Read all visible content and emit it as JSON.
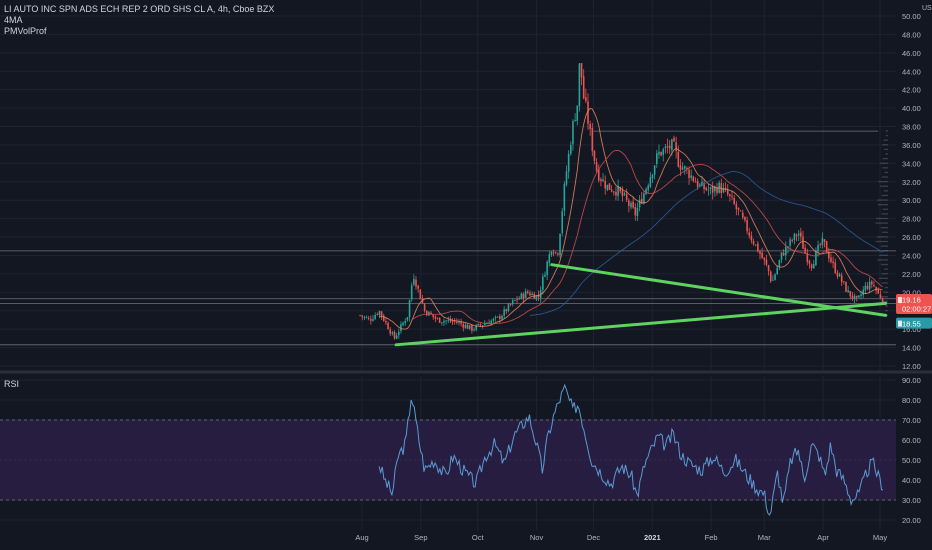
{
  "header": {
    "symbol_title": "LI AUTO INC SPN ADS ECH REP 2 ORD SHS CL A, 4h, Cboe BZX",
    "indicator_1": "4MA",
    "indicator_2": "PMVolProf"
  },
  "rsi_panel": {
    "label": "RSI"
  },
  "colors": {
    "background": "#131722",
    "grid": "#1f2330",
    "up_candle": "#26a69a",
    "down_candle": "#ef5350",
    "trendline": "#5fd35f",
    "price_label": "#ef5350",
    "secondary_label": "#2b9aa8",
    "rsi_line": "#5b9bd5",
    "rsi_band": "#2a1f45",
    "ma_fast": "#ef8a62",
    "ma_mid": "#d35050",
    "ma_slow": "#2e5fa0"
  },
  "chart_data": [
    {
      "type": "candlestick",
      "title": "LI AUTO INC SPN ADS ECH REP 2 ORD SHS CL A, 4h, Cboe BZX",
      "y_axis_unit": "USD",
      "ylim": [
        12,
        50
      ],
      "y_ticks": [
        "50.00",
        "48.00",
        "46.00",
        "44.00",
        "42.00",
        "40.00",
        "38.00",
        "36.00",
        "34.00",
        "32.00",
        "30.00",
        "28.00",
        "26.00",
        "24.00",
        "22.00",
        "20.00",
        "18.00",
        "16.00",
        "14.00",
        "12.00"
      ],
      "x_ticks": [
        "Aug",
        "Sep",
        "Oct",
        "Nov",
        "Dec",
        "2021",
        "Feb",
        "Mar",
        "Apr",
        "May"
      ],
      "price_path": [
        {
          "t": "Jul 31",
          "close": 17.5
        },
        {
          "t": "Aug 5",
          "close": 17.0
        },
        {
          "t": "Aug 10",
          "close": 18.0
        },
        {
          "t": "Aug 14",
          "close": 16.5
        },
        {
          "t": "Aug 18",
          "close": 15.0
        },
        {
          "t": "Aug 25",
          "close": 17.5
        },
        {
          "t": "Aug 28",
          "close": 22.0
        },
        {
          "t": "Sep 3",
          "close": 18.0
        },
        {
          "t": "Sep 10",
          "close": 17.0
        },
        {
          "t": "Sep 20",
          "close": 16.8
        },
        {
          "t": "Sep 28",
          "close": 16.0
        },
        {
          "t": "Oct 3",
          "close": 16.5
        },
        {
          "t": "Oct 12",
          "close": 17.2
        },
        {
          "t": "Oct 20",
          "close": 19.0
        },
        {
          "t": "Oct 27",
          "close": 20.0
        },
        {
          "t": "Nov 2",
          "close": 19.5
        },
        {
          "t": "Nov 5",
          "close": 22.0
        },
        {
          "t": "Nov 9",
          "close": 25.0
        },
        {
          "t": "Nov 12",
          "close": 24.0
        },
        {
          "t": "Nov 16",
          "close": 32.0
        },
        {
          "t": "Nov 20",
          "close": 38.0
        },
        {
          "t": "Nov 23",
          "close": 41.0
        },
        {
          "t": "Nov 24",
          "close": 47.0
        },
        {
          "t": "Nov 25",
          "close": 42.0
        },
        {
          "t": "Nov 27",
          "close": 40.0
        },
        {
          "t": "Dec 1",
          "close": 35.0
        },
        {
          "t": "Dec 3",
          "close": 33.0
        },
        {
          "t": "Dec 8",
          "close": 31.5
        },
        {
          "t": "Dec 14",
          "close": 31.0
        },
        {
          "t": "Dec 18",
          "close": 30.0
        },
        {
          "t": "Dec 23",
          "close": 28.5
        },
        {
          "t": "Dec 28",
          "close": 31.0
        },
        {
          "t": "Jan 4",
          "close": 35.0
        },
        {
          "t": "Jan 8",
          "close": 35.5
        },
        {
          "t": "Jan 12",
          "close": 36.0
        },
        {
          "t": "Jan 15",
          "close": 34.0
        },
        {
          "t": "Jan 20",
          "close": 33.0
        },
        {
          "t": "Jan 26",
          "close": 31.5
        },
        {
          "t": "Feb 1",
          "close": 31.0
        },
        {
          "t": "Feb 5",
          "close": 31.5
        },
        {
          "t": "Feb 10",
          "close": 30.5
        },
        {
          "t": "Feb 16",
          "close": 28.5
        },
        {
          "t": "Feb 22",
          "close": 26.0
        },
        {
          "t": "Feb 26",
          "close": 24.5
        },
        {
          "t": "Mar 3",
          "close": 22.5
        },
        {
          "t": "Mar 5",
          "close": 21.0
        },
        {
          "t": "Mar 10",
          "close": 24.0
        },
        {
          "t": "Mar 15",
          "close": 25.5
        },
        {
          "t": "Mar 19",
          "close": 26.5
        },
        {
          "t": "Mar 23",
          "close": 24.0
        },
        {
          "t": "Mar 26",
          "close": 23.0
        },
        {
          "t": "Mar 30",
          "close": 25.0
        },
        {
          "t": "Apr 1",
          "close": 25.5
        },
        {
          "t": "Apr 6",
          "close": 23.0
        },
        {
          "t": "Apr 10",
          "close": 21.5
        },
        {
          "t": "Apr 14",
          "close": 20.0
        },
        {
          "t": "Apr 19",
          "close": 19.0
        },
        {
          "t": "Apr 23",
          "close": 20.5
        },
        {
          "t": "Apr 27",
          "close": 21.0
        },
        {
          "t": "Apr 30",
          "close": 19.8
        },
        {
          "t": "May 3",
          "close": 19.2
        }
      ],
      "trendlines": [
        {
          "from": {
            "t": "Aug 19",
            "y": 14.3
          },
          "to": {
            "t": "May 4",
            "y": 18.8
          }
        },
        {
          "from": {
            "t": "Nov 9",
            "y": 23.0
          },
          "to": {
            "t": "May 4",
            "y": 17.5
          }
        }
      ],
      "horizontal_levels": [
        {
          "y": 37.5,
          "from_t": "Dec 1",
          "to_t": "Apr 30"
        },
        {
          "y": 24.5
        },
        {
          "y": 19.3
        },
        {
          "y": 18.8
        },
        {
          "y": 14.3
        }
      ],
      "price_labels": [
        {
          "text": "19.16",
          "kind": "last"
        },
        {
          "text": "02:00:27",
          "kind": "countdown"
        },
        {
          "text": "18.55",
          "kind": "secondary"
        }
      ]
    },
    {
      "type": "line",
      "title": "RSI",
      "ylim": [
        20,
        90
      ],
      "y_ticks": [
        "90.00",
        "80.00",
        "70.00",
        "60.00",
        "50.00",
        "40.00",
        "30.00",
        "20.00"
      ],
      "band": [
        30,
        70
      ],
      "series": [
        {
          "name": "RSI",
          "points": [
            {
              "t": "Aug 10",
              "v": 48
            },
            {
              "t": "Aug 13",
              "v": 40
            },
            {
              "t": "Aug 17",
              "v": 33
            },
            {
              "t": "Aug 20",
              "v": 52
            },
            {
              "t": "Aug 24",
              "v": 58
            },
            {
              "t": "Aug 27",
              "v": 83
            },
            {
              "t": "Aug 31",
              "v": 60
            },
            {
              "t": "Sep 3",
              "v": 45
            },
            {
              "t": "Sep 8",
              "v": 50
            },
            {
              "t": "Sep 14",
              "v": 42
            },
            {
              "t": "Sep 18",
              "v": 52
            },
            {
              "t": "Sep 24",
              "v": 44
            },
            {
              "t": "Sep 30",
              "v": 38
            },
            {
              "t": "Oct 5",
              "v": 52
            },
            {
              "t": "Oct 10",
              "v": 58
            },
            {
              "t": "Oct 15",
              "v": 48
            },
            {
              "t": "Oct 20",
              "v": 62
            },
            {
              "t": "Oct 24",
              "v": 67
            },
            {
              "t": "Oct 28",
              "v": 72
            },
            {
              "t": "Nov 1",
              "v": 58
            },
            {
              "t": "Nov 4",
              "v": 45
            },
            {
              "t": "Nov 7",
              "v": 62
            },
            {
              "t": "Nov 10",
              "v": 72
            },
            {
              "t": "Nov 13",
              "v": 80
            },
            {
              "t": "Nov 16",
              "v": 86
            },
            {
              "t": "Nov 20",
              "v": 75
            },
            {
              "t": "Nov 23",
              "v": 78
            },
            {
              "t": "Nov 26",
              "v": 66
            },
            {
              "t": "Nov 30",
              "v": 50
            },
            {
              "t": "Dec 4",
              "v": 45
            },
            {
              "t": "Dec 10",
              "v": 38
            },
            {
              "t": "Dec 16",
              "v": 47
            },
            {
              "t": "Dec 21",
              "v": 42
            },
            {
              "t": "Dec 24",
              "v": 32
            },
            {
              "t": "Dec 28",
              "v": 48
            },
            {
              "t": "Jan 4",
              "v": 62
            },
            {
              "t": "Jan 8",
              "v": 57
            },
            {
              "t": "Jan 12",
              "v": 63
            },
            {
              "t": "Jan 16",
              "v": 53
            },
            {
              "t": "Jan 21",
              "v": 48
            },
            {
              "t": "Jan 27",
              "v": 45
            },
            {
              "t": "Feb 2",
              "v": 52
            },
            {
              "t": "Feb 8",
              "v": 44
            },
            {
              "t": "Feb 14",
              "v": 50
            },
            {
              "t": "Feb 20",
              "v": 42
            },
            {
              "t": "Feb 25",
              "v": 36
            },
            {
              "t": "Mar 1",
              "v": 33
            },
            {
              "t": "Mar 4",
              "v": 22
            },
            {
              "t": "Mar 8",
              "v": 44
            },
            {
              "t": "Mar 11",
              "v": 28
            },
            {
              "t": "Mar 15",
              "v": 50
            },
            {
              "t": "Mar 19",
              "v": 55
            },
            {
              "t": "Mar 22",
              "v": 40
            },
            {
              "t": "Mar 26",
              "v": 58
            },
            {
              "t": "Mar 30",
              "v": 52
            },
            {
              "t": "Apr 2",
              "v": 42
            },
            {
              "t": "Apr 5",
              "v": 58
            },
            {
              "t": "Apr 8",
              "v": 45
            },
            {
              "t": "Apr 12",
              "v": 40
            },
            {
              "t": "Apr 16",
              "v": 30
            },
            {
              "t": "Apr 20",
              "v": 33
            },
            {
              "t": "Apr 24",
              "v": 44
            },
            {
              "t": "Apr 27",
              "v": 49
            },
            {
              "t": "Apr 30",
              "v": 42
            },
            {
              "t": "May 3",
              "v": 36
            }
          ]
        }
      ]
    }
  ]
}
